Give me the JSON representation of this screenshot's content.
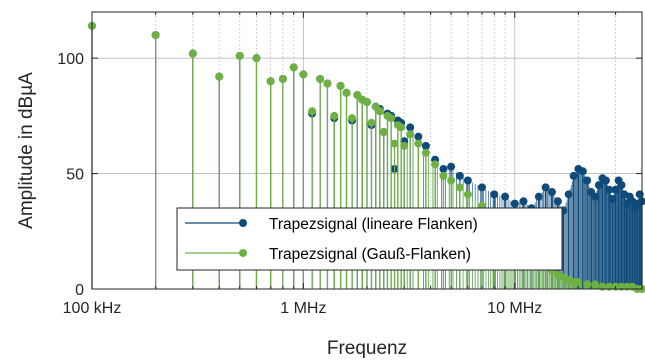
{
  "chart_data": {
    "type": "stem",
    "xlabel": "Frequenz",
    "ylabel": "Amplitude in dBµA",
    "x_scale": "log",
    "xlim": [
      100000,
      40000000
    ],
    "ylim": [
      0,
      120
    ],
    "x_ticks": [
      {
        "value": 100000,
        "label": "100 kHz"
      },
      {
        "value": 1000000,
        "label": "1 MHz"
      },
      {
        "value": 10000000,
        "label": "10 MHz"
      }
    ],
    "y_ticks": [
      {
        "value": 0,
        "label": "0"
      },
      {
        "value": 50,
        "label": "50"
      },
      {
        "value": 100,
        "label": "100"
      }
    ],
    "grid": true,
    "legend_position": "bottom-left",
    "fundamental_hz": 100000,
    "series": [
      {
        "name": "Trapezsignal (lineare Flanken)",
        "color": "#0e4a7a",
        "points": [
          [
            100000,
            114
          ],
          [
            200000,
            110
          ],
          [
            300000,
            102
          ],
          [
            400000,
            92
          ],
          [
            500000,
            101
          ],
          [
            600000,
            100
          ],
          [
            700000,
            90
          ],
          [
            800000,
            91
          ],
          [
            900000,
            96
          ],
          [
            1000000,
            93
          ],
          [
            1100000,
            76
          ],
          [
            1200000,
            91
          ],
          [
            1300000,
            89
          ],
          [
            1400000,
            74
          ],
          [
            1500000,
            88
          ],
          [
            1600000,
            85
          ],
          [
            1700000,
            73
          ],
          [
            1800000,
            84
          ],
          [
            1900000,
            82
          ],
          [
            2000000,
            81
          ],
          [
            2100000,
            71
          ],
          [
            2200000,
            79
          ],
          [
            2300000,
            78
          ],
          [
            2400000,
            68
          ],
          [
            2500000,
            76
          ],
          [
            2600000,
            75
          ],
          [
            2700000,
            52
          ],
          [
            2800000,
            73
          ],
          [
            2900000,
            72
          ],
          [
            3000000,
            64
          ],
          [
            3200000,
            70
          ],
          [
            3500000,
            66
          ],
          [
            3800000,
            62
          ],
          [
            4200000,
            56
          ],
          [
            4600000,
            52
          ],
          [
            5000000,
            53
          ],
          [
            5500000,
            49
          ],
          [
            6000000,
            47
          ],
          [
            7000000,
            44
          ],
          [
            8000000,
            41
          ],
          [
            9000000,
            40
          ],
          [
            10000000,
            37
          ],
          [
            11000000,
            38
          ],
          [
            12000000,
            35
          ],
          [
            13000000,
            40
          ],
          [
            14000000,
            44
          ],
          [
            15000000,
            42
          ],
          [
            16000000,
            38
          ],
          [
            17000000,
            34
          ],
          [
            18000000,
            41
          ],
          [
            19000000,
            49
          ],
          [
            20000000,
            52
          ],
          [
            21000000,
            51
          ],
          [
            22000000,
            47
          ],
          [
            23000000,
            42
          ],
          [
            24000000,
            40
          ],
          [
            25000000,
            45
          ],
          [
            26000000,
            48
          ],
          [
            27000000,
            47
          ],
          [
            28000000,
            43
          ],
          [
            29000000,
            39
          ],
          [
            30000000,
            43
          ],
          [
            31000000,
            47
          ],
          [
            32000000,
            45
          ],
          [
            33000000,
            41
          ],
          [
            34000000,
            37
          ],
          [
            35000000,
            40
          ],
          [
            36000000,
            38
          ],
          [
            37000000,
            35
          ],
          [
            38000000,
            37
          ],
          [
            39000000,
            41
          ],
          [
            40000000,
            38
          ]
        ]
      },
      {
        "name": "Trapezsignal (Gauß-Flanken)",
        "color": "#6fb043",
        "points": [
          [
            100000,
            114
          ],
          [
            200000,
            110
          ],
          [
            300000,
            102
          ],
          [
            400000,
            92
          ],
          [
            500000,
            101
          ],
          [
            600000,
            100
          ],
          [
            700000,
            90
          ],
          [
            800000,
            91
          ],
          [
            900000,
            96
          ],
          [
            1000000,
            93
          ],
          [
            1100000,
            77
          ],
          [
            1200000,
            91
          ],
          [
            1300000,
            89
          ],
          [
            1400000,
            75
          ],
          [
            1500000,
            88
          ],
          [
            1600000,
            85
          ],
          [
            1700000,
            74
          ],
          [
            1800000,
            84
          ],
          [
            1900000,
            82
          ],
          [
            2000000,
            81
          ],
          [
            2100000,
            72
          ],
          [
            2200000,
            79
          ],
          [
            2300000,
            77
          ],
          [
            2400000,
            68
          ],
          [
            2500000,
            75
          ],
          [
            2600000,
            74
          ],
          [
            2700000,
            63
          ],
          [
            2800000,
            71
          ],
          [
            2900000,
            70
          ],
          [
            3000000,
            62
          ],
          [
            3200000,
            67
          ],
          [
            3500000,
            63
          ],
          [
            3800000,
            59
          ],
          [
            4200000,
            54
          ],
          [
            4600000,
            49
          ],
          [
            5000000,
            47
          ],
          [
            5500000,
            44
          ],
          [
            6000000,
            41
          ],
          [
            7000000,
            36
          ],
          [
            8000000,
            32
          ],
          [
            9000000,
            27
          ],
          [
            10000000,
            23
          ],
          [
            11000000,
            19
          ],
          [
            12000000,
            16
          ],
          [
            13000000,
            13
          ],
          [
            14000000,
            10
          ],
          [
            15000000,
            8
          ],
          [
            16000000,
            6
          ],
          [
            17000000,
            5
          ],
          [
            18000000,
            4
          ],
          [
            19000000,
            3
          ],
          [
            20000000,
            3
          ],
          [
            22000000,
            2
          ],
          [
            24000000,
            2
          ],
          [
            26000000,
            1
          ],
          [
            28000000,
            1
          ],
          [
            30000000,
            1
          ],
          [
            32000000,
            1
          ],
          [
            34000000,
            1
          ],
          [
            36000000,
            1
          ],
          [
            38000000,
            0
          ],
          [
            40000000,
            0
          ]
        ]
      }
    ]
  }
}
